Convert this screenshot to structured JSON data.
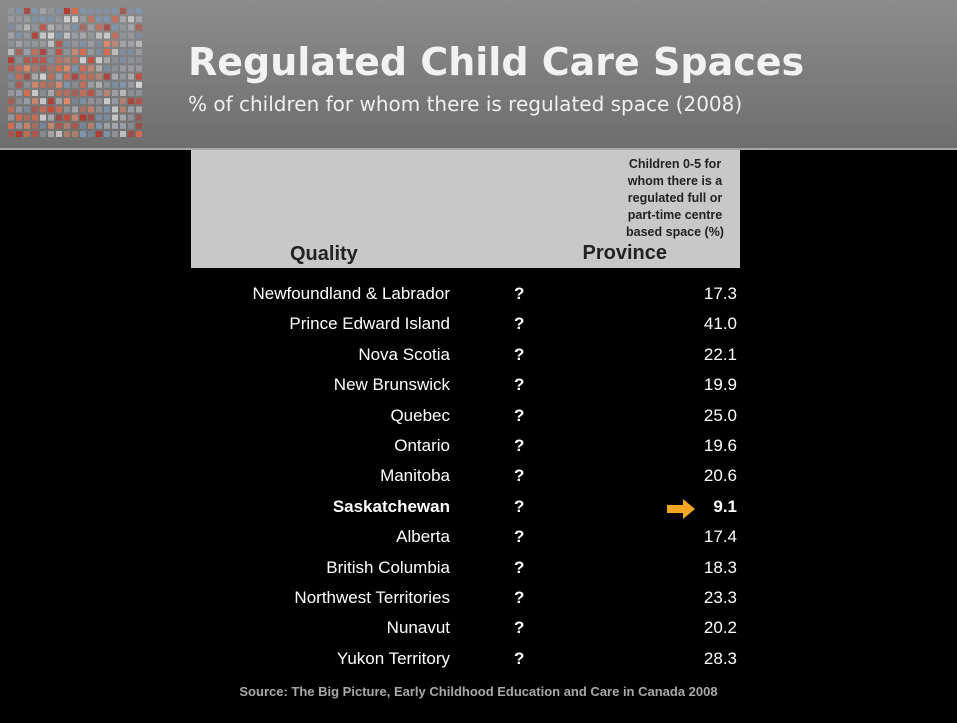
{
  "header": {
    "title": "Regulated Child Care Spaces",
    "subtitle": "% of children for whom there is regulated space (2008)"
  },
  "table": {
    "columns": [
      "Province",
      "Quality",
      [
        "Children 0-5 for",
        "whom there is a",
        "regulated full or",
        "part-time centre",
        "based space (%)"
      ]
    ],
    "rows": [
      {
        "province": "Newfoundland & Labrador",
        "quality": "?",
        "value": "17.3"
      },
      {
        "province": "Prince Edward Island",
        "quality": "?",
        "value": "41.0"
      },
      {
        "province": "Nova Scotia",
        "quality": "?",
        "value": "22.1"
      },
      {
        "province": "New Brunswick",
        "quality": "?",
        "value": "19.9"
      },
      {
        "province": "Quebec",
        "quality": "?",
        "value": "25.0"
      },
      {
        "province": "Ontario",
        "quality": "?",
        "value": "19.6"
      },
      {
        "province": "Manitoba",
        "quality": "?",
        "value": "20.6"
      },
      {
        "province": "Saskatchewan",
        "quality": "?",
        "value": "9.1",
        "highlighted": true
      },
      {
        "province": "Alberta",
        "quality": "?",
        "value": "17.4"
      },
      {
        "province": "British Columbia",
        "quality": "?",
        "value": "18.3"
      },
      {
        "province": "Northwest Territories",
        "quality": "?",
        "value": "23.3"
      },
      {
        "province": "Nunavut",
        "quality": "?",
        "value": "20.2"
      },
      {
        "province": "Yukon Territory",
        "quality": "?",
        "value": "28.3"
      }
    ]
  },
  "source": "Source: The Big Picture, Early Childhood Education and Care in Canada 2008"
}
